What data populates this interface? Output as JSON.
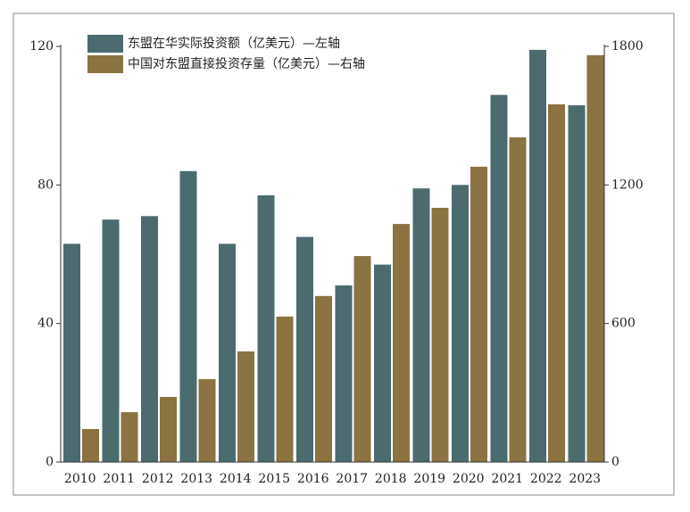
{
  "chart_data": {
    "type": "bar",
    "categories": [
      "2010",
      "2011",
      "2012",
      "2013",
      "2014",
      "2015",
      "2016",
      "2017",
      "2018",
      "2019",
      "2020",
      "2021",
      "2022",
      "2023"
    ],
    "series": [
      {
        "name": "东盟在华实际投资额（亿美元）—左轴",
        "color": "#4b6b6f",
        "values": [
          63,
          70,
          71,
          84,
          63,
          77,
          65,
          51,
          57,
          79,
          80,
          106,
          119,
          103
        ]
      },
      {
        "name": "中国对东盟直接投资存量（亿美元）—右轴",
        "color": "#8b7342",
        "axis": "y2",
        "values": [
          143,
          216,
          282,
          359,
          479,
          630,
          719,
          892,
          1031,
          1101,
          1279,
          1406,
          1549,
          1762
        ]
      }
    ],
    "ylim": [
      0,
      120
    ],
    "yticks": [
      0,
      40,
      80,
      120
    ],
    "y2lim": [
      0,
      1800
    ],
    "y2ticks": [
      0,
      600,
      1200,
      1800
    ],
    "legend": "top-left"
  }
}
